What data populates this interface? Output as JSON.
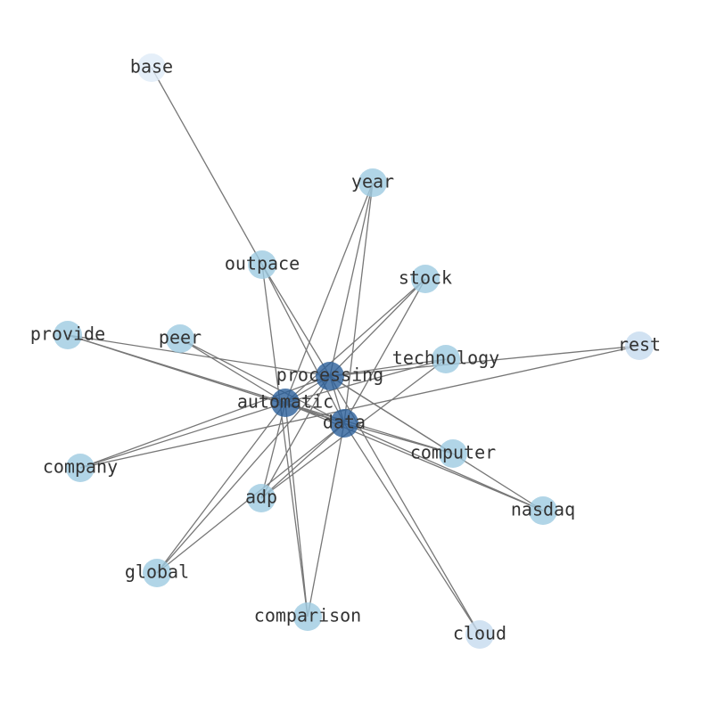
{
  "graph": {
    "nodes": [
      {
        "label": "base",
        "color": "#deebf7"
      },
      {
        "label": "year",
        "color": "#9ecae1"
      },
      {
        "label": "outpace",
        "color": "#9ecae1"
      },
      {
        "label": "stock",
        "color": "#9ecae1"
      },
      {
        "label": "provide",
        "color": "#9ecae1"
      },
      {
        "label": "peer",
        "color": "#9ecae1"
      },
      {
        "label": "rest",
        "color": "#c6dbef"
      },
      {
        "label": "technology",
        "color": "#9ecae1"
      },
      {
        "label": "processing",
        "color": "#2b5f9a"
      },
      {
        "label": "automatic",
        "color": "#2b5f9a"
      },
      {
        "label": "data",
        "color": "#2b5f9a"
      },
      {
        "label": "computer",
        "color": "#9ecae1"
      },
      {
        "label": "company",
        "color": "#9ecae1"
      },
      {
        "label": "adp",
        "color": "#9ecae1"
      },
      {
        "label": "nasdaq",
        "color": "#9ecae1"
      },
      {
        "label": "global",
        "color": "#9ecae1"
      },
      {
        "label": "comparison",
        "color": "#9ecae1"
      },
      {
        "label": "cloud",
        "color": "#c6dbef"
      }
    ],
    "edges": [
      [
        "base",
        "outpace"
      ],
      [
        "outpace",
        "processing"
      ],
      [
        "outpace",
        "data"
      ],
      [
        "outpace",
        "comparison"
      ],
      [
        "year",
        "automatic"
      ],
      [
        "year",
        "processing"
      ],
      [
        "year",
        "data"
      ],
      [
        "stock",
        "processing"
      ],
      [
        "stock",
        "automatic"
      ],
      [
        "stock",
        "data"
      ],
      [
        "provide",
        "processing"
      ],
      [
        "provide",
        "automatic"
      ],
      [
        "provide",
        "data"
      ],
      [
        "peer",
        "automatic"
      ],
      [
        "peer",
        "data"
      ],
      [
        "rest",
        "processing"
      ],
      [
        "rest",
        "company"
      ],
      [
        "technology",
        "processing"
      ],
      [
        "technology",
        "automatic"
      ],
      [
        "technology",
        "adp"
      ],
      [
        "computer",
        "processing"
      ],
      [
        "computer",
        "automatic"
      ],
      [
        "computer",
        "data"
      ],
      [
        "company",
        "processing"
      ],
      [
        "company",
        "automatic"
      ],
      [
        "adp",
        "processing"
      ],
      [
        "adp",
        "automatic"
      ],
      [
        "adp",
        "data"
      ],
      [
        "nasdaq",
        "processing"
      ],
      [
        "nasdaq",
        "automatic"
      ],
      [
        "nasdaq",
        "data"
      ],
      [
        "global",
        "automatic"
      ],
      [
        "global",
        "processing"
      ],
      [
        "global",
        "data"
      ],
      [
        "comparison",
        "automatic"
      ],
      [
        "comparison",
        "data"
      ],
      [
        "cloud",
        "processing"
      ],
      [
        "cloud",
        "data"
      ],
      [
        "processing",
        "automatic"
      ],
      [
        "processing",
        "data"
      ],
      [
        "automatic",
        "data"
      ]
    ]
  }
}
